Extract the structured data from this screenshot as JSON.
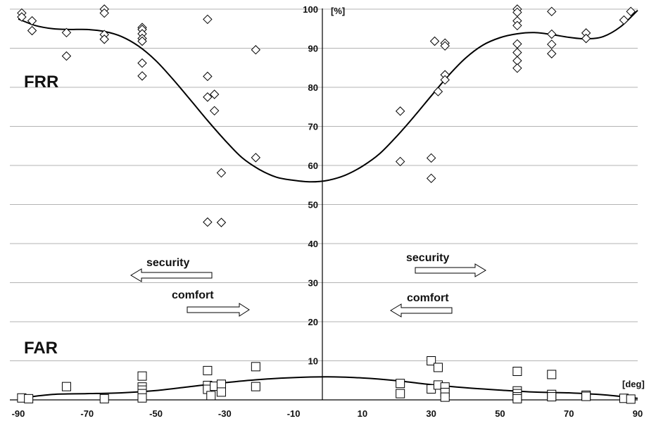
{
  "chart_data": {
    "type": "scatter",
    "x_unit": "[deg]",
    "y_unit": "[%]",
    "xlim": [
      -90,
      90
    ],
    "ylim": [
      0,
      100
    ],
    "x_ticks": [
      -90,
      -70,
      -50,
      -30,
      -10,
      10,
      30,
      50,
      70,
      90
    ],
    "y_ticks": [
      10,
      20,
      30,
      40,
      50,
      60,
      70,
      80,
      90,
      100
    ],
    "grid": true,
    "series": [
      {
        "name": "FRR",
        "marker": "diamond",
        "points": [
          [
            -89,
            99
          ],
          [
            -89,
            98
          ],
          [
            -86,
            97
          ],
          [
            -86,
            94.5
          ],
          [
            -76,
            94
          ],
          [
            -76,
            88
          ],
          [
            -65,
            100
          ],
          [
            -65,
            99
          ],
          [
            -65,
            93.5
          ],
          [
            -65,
            92.3
          ],
          [
            -54,
            95.3
          ],
          [
            -54,
            94.8
          ],
          [
            -54,
            93.7
          ],
          [
            -54,
            92.5
          ],
          [
            -54,
            91.8
          ],
          [
            -54,
            86.2
          ],
          [
            -54,
            82.9
          ],
          [
            -35,
            97.4
          ],
          [
            -35,
            82.8
          ],
          [
            -35,
            77.5
          ],
          [
            -33,
            78.2
          ],
          [
            -33,
            74
          ],
          [
            -31,
            58.1
          ],
          [
            -35,
            45.5
          ],
          [
            -31,
            45.4
          ],
          [
            -21,
            89.6
          ],
          [
            -21,
            62
          ],
          [
            21,
            73.9
          ],
          [
            21,
            61
          ],
          [
            30,
            61.9
          ],
          [
            30,
            56.7
          ],
          [
            31,
            91.8
          ],
          [
            34,
            91.3
          ],
          [
            34,
            90.6
          ],
          [
            34,
            83.2
          ],
          [
            34,
            81.9
          ],
          [
            32,
            78.9
          ],
          [
            55,
            100
          ],
          [
            55,
            99.2
          ],
          [
            55,
            97
          ],
          [
            55,
            95.8
          ],
          [
            55,
            91.1
          ],
          [
            55,
            88.9
          ],
          [
            55,
            86.8
          ],
          [
            55,
            84.9
          ],
          [
            65,
            99.4
          ],
          [
            65,
            93.6
          ],
          [
            65,
            91
          ],
          [
            65,
            88.6
          ],
          [
            75,
            93.9
          ],
          [
            75,
            92.5
          ],
          [
            86,
            97.2
          ],
          [
            88,
            99.4
          ]
        ],
        "trend": [
          [
            -90,
            97.5
          ],
          [
            -85,
            95.8
          ],
          [
            -80,
            95
          ],
          [
            -75,
            94.8
          ],
          [
            -70,
            94.8
          ],
          [
            -65,
            94.3
          ],
          [
            -60,
            93
          ],
          [
            -55,
            90.5
          ],
          [
            -50,
            86.8
          ],
          [
            -45,
            82
          ],
          [
            -40,
            76.8
          ],
          [
            -35,
            71.5
          ],
          [
            -30,
            66.5
          ],
          [
            -25,
            62
          ],
          [
            -20,
            59
          ],
          [
            -15,
            57
          ],
          [
            -10,
            56.2
          ],
          [
            -5,
            55.8
          ],
          [
            0,
            56.2
          ],
          [
            5,
            57.5
          ],
          [
            10,
            59.8
          ],
          [
            15,
            63
          ],
          [
            20,
            67.5
          ],
          [
            25,
            72.5
          ],
          [
            30,
            77.8
          ],
          [
            35,
            83
          ],
          [
            40,
            87.5
          ],
          [
            45,
            90.8
          ],
          [
            50,
            92.7
          ],
          [
            55,
            93.7
          ],
          [
            60,
            94
          ],
          [
            65,
            93.5
          ],
          [
            70,
            92.8
          ],
          [
            75,
            92.4
          ],
          [
            80,
            93
          ],
          [
            85,
            95.5
          ],
          [
            90,
            99.7
          ]
        ]
      },
      {
        "name": "FAR",
        "marker": "square",
        "points": [
          [
            -89,
            0.5
          ],
          [
            -87,
            0.3
          ],
          [
            -76,
            3.4
          ],
          [
            -65,
            0.3
          ],
          [
            -54,
            6.1
          ],
          [
            -54,
            3.3
          ],
          [
            -54,
            2.5
          ],
          [
            -54,
            1.6
          ],
          [
            -54,
            0.5
          ],
          [
            -35,
            7.5
          ],
          [
            -35,
            3.7
          ],
          [
            -35,
            2.7
          ],
          [
            -34,
            1.1
          ],
          [
            -33,
            3.5
          ],
          [
            -31,
            4
          ],
          [
            -31,
            2
          ],
          [
            -21,
            8.5
          ],
          [
            -21,
            3.4
          ],
          [
            21,
            4.2
          ],
          [
            21,
            1.6
          ],
          [
            30,
            10
          ],
          [
            30,
            2.8
          ],
          [
            32,
            8.3
          ],
          [
            32,
            3.8
          ],
          [
            34,
            3.3
          ],
          [
            34,
            1.9
          ],
          [
            34,
            0.7
          ],
          [
            55,
            7.3
          ],
          [
            55,
            2.3
          ],
          [
            55,
            1.6
          ],
          [
            55,
            0.8
          ],
          [
            55,
            0.3
          ],
          [
            65,
            6.5
          ],
          [
            65,
            1.4
          ],
          [
            65,
            0.8
          ],
          [
            75,
            1.2
          ],
          [
            75,
            0.9
          ],
          [
            86,
            0.4
          ],
          [
            88,
            0.2
          ]
        ],
        "trend": [
          [
            -90,
            0.4
          ],
          [
            -80,
            1.4
          ],
          [
            -70,
            1.6
          ],
          [
            -60,
            1.8
          ],
          [
            -50,
            2.4
          ],
          [
            -40,
            3.4
          ],
          [
            -30,
            4.4
          ],
          [
            -20,
            5.2
          ],
          [
            -10,
            5.7
          ],
          [
            0,
            5.9
          ],
          [
            10,
            5.6
          ],
          [
            20,
            4.9
          ],
          [
            30,
            3.9
          ],
          [
            40,
            3.1
          ],
          [
            50,
            2.5
          ],
          [
            60,
            2
          ],
          [
            70,
            1.8
          ],
          [
            80,
            1.3
          ],
          [
            90,
            0.4
          ]
        ]
      }
    ],
    "annotations": {
      "frr_label": "FRR",
      "far_label": "FAR",
      "left_security": "security",
      "left_comfort": "comfort",
      "right_security": "security",
      "right_comfort": "comfort"
    }
  }
}
